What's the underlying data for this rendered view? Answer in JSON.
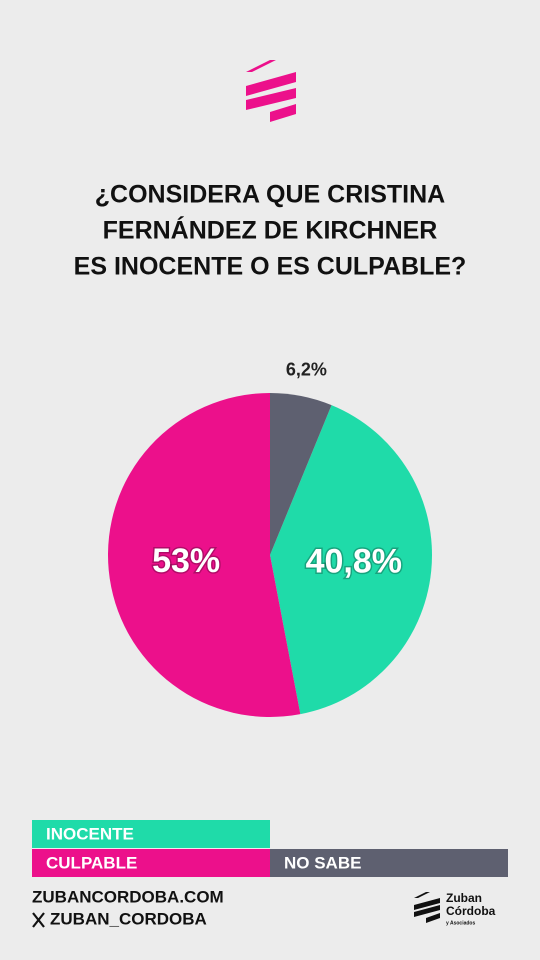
{
  "chart_data": {
    "type": "pie",
    "title": [
      "¿CONSIDERA QUE CRISTINA",
      "FERNÁNDEZ DE KIRCHNER",
      "ES INOCENTE O ES CULPABLE?"
    ],
    "categories": [
      "INOCENTE",
      "CULPABLE",
      "NO SABE"
    ],
    "values": [
      40.8,
      53,
      6.2
    ],
    "value_labels": [
      "40,8%",
      "53%",
      "6,2%"
    ],
    "colors": [
      "#1fdba9",
      "#ec108b",
      "#5e6070"
    ]
  },
  "footer": {
    "website": "ZUBANCORDOBA.COM",
    "handle": "ZUBAN_CORDOBA",
    "brand": [
      "Zuban",
      "Córdoba",
      "y Asociados"
    ]
  }
}
